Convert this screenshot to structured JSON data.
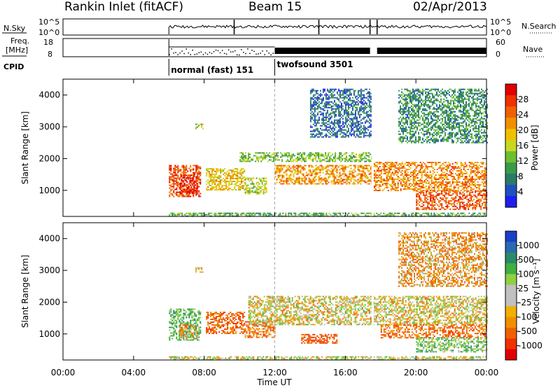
{
  "header": {
    "station": "Rankin Inlet (fitACF)",
    "beam": "Beam 15",
    "date": "02/Apr/2013"
  },
  "top_panels": {
    "nsky_label": "N.Sky",
    "nsky_ticks": [
      "10^5",
      "10^0"
    ],
    "nsearch_label": "N.Search",
    "freq_label_line1": "Freq.",
    "freq_label_line2": "[MHz]",
    "freq_ticks": [
      "18",
      "8"
    ],
    "nave_label": "Nave",
    "nave_ticks": [
      "60",
      "0"
    ],
    "cpid_label": "CPID",
    "modes": [
      {
        "label": "normal (fast) 151",
        "start_hour": 6.0,
        "end_hour": 12.0
      },
      {
        "label": "twofsound 3501",
        "start_hour": 12.0,
        "end_hour": 24.0
      }
    ]
  },
  "axes": {
    "time_label": "Time UT",
    "time_ticks": [
      "00:00",
      "04:00",
      "08:00",
      "12:00",
      "16:00",
      "20:00",
      "00:00"
    ],
    "range_label": "Slant Range [km]",
    "range_ticks": [
      "1000",
      "2000",
      "3000",
      "4000"
    ]
  },
  "colorbars": {
    "power": {
      "label": "Power [dB]",
      "ticks": [
        "4",
        "8",
        "12",
        "16",
        "20",
        "24",
        "28"
      ],
      "colors": [
        "#1e1ef0",
        "#2050c0",
        "#2a7a6a",
        "#3a9a4a",
        "#6cc030",
        "#c8d820",
        "#f0c000",
        "#f09000",
        "#f06000",
        "#f03000",
        "#e00000"
      ]
    },
    "velocity": {
      "label": "Velocity [m s⁻¹]",
      "ticks": [
        "1000",
        "500",
        "100",
        "25",
        "-25",
        "-100",
        "-500",
        "-1000"
      ],
      "colors": [
        "#1a3fc8",
        "#2a6ab0",
        "#2a8a6a",
        "#40b040",
        "#90d040",
        "#c0c0c0",
        "#c0c0c0",
        "#f0b000",
        "#f09000",
        "#f06000",
        "#f03000",
        "#e00000"
      ]
    }
  },
  "chart_data": {
    "type": "heatmap",
    "x_range_hours": [
      0,
      24
    ],
    "y_range_km": [
      180,
      4500
    ],
    "power_blocks": [
      {
        "t0": 6.0,
        "t1": 7.8,
        "r0": 800,
        "r1": 1800,
        "power": 26
      },
      {
        "t0": 6.6,
        "t1": 7.6,
        "r0": 900,
        "r1": 1500,
        "power": 29
      },
      {
        "t0": 8.1,
        "t1": 10.3,
        "r0": 1000,
        "r1": 1700,
        "power": 18
      },
      {
        "t0": 10.3,
        "t1": 11.5,
        "r0": 900,
        "r1": 1400,
        "power": 14
      },
      {
        "t0": 12.0,
        "t1": 17.5,
        "r0": 1200,
        "r1": 1800,
        "power": 21
      },
      {
        "t0": 10.0,
        "t1": 17.5,
        "r0": 1900,
        "r1": 2200,
        "power": 12
      },
      {
        "t0": 17.6,
        "t1": 24.0,
        "r0": 1000,
        "r1": 1900,
        "power": 22
      },
      {
        "t0": 20.0,
        "t1": 24.0,
        "r0": 400,
        "r1": 1000,
        "power": 25
      },
      {
        "t0": 6.0,
        "t1": 24.0,
        "r0": 180,
        "r1": 300,
        "power": 10
      },
      {
        "t0": 14.0,
        "t1": 17.5,
        "r0": 2700,
        "r1": 4200,
        "power": 5
      },
      {
        "t0": 19.0,
        "t1": 24.0,
        "r0": 2500,
        "r1": 4200,
        "power": 8
      },
      {
        "t0": 7.5,
        "t1": 7.9,
        "r0": 2950,
        "r1": 3100,
        "power": 13
      }
    ],
    "velocity_blocks": [
      {
        "t0": 6.0,
        "t1": 7.8,
        "r0": 800,
        "r1": 1800,
        "velocity": 300
      },
      {
        "t0": 6.6,
        "t1": 7.6,
        "r0": 900,
        "r1": 1300,
        "velocity": -200
      },
      {
        "t0": 8.1,
        "t1": 10.3,
        "r0": 1000,
        "r1": 1700,
        "velocity": -300
      },
      {
        "t0": 10.3,
        "t1": 12.0,
        "r0": 900,
        "r1": 1400,
        "velocity": -250
      },
      {
        "t0": 10.5,
        "t1": 24.0,
        "r0": 1300,
        "r1": 2200,
        "velocity": 0
      },
      {
        "t0": 13.5,
        "t1": 15.5,
        "r0": 700,
        "r1": 1000,
        "velocity": -400
      },
      {
        "t0": 18.0,
        "t1": 24.0,
        "r0": 900,
        "r1": 1300,
        "velocity": -300
      },
      {
        "t0": 20.0,
        "t1": 24.0,
        "r0": 450,
        "r1": 900,
        "velocity": 200
      },
      {
        "t0": 6.0,
        "t1": 24.0,
        "r0": 180,
        "r1": 300,
        "velocity": 50
      },
      {
        "t0": 19.0,
        "t1": 24.0,
        "r0": 2500,
        "r1": 4200,
        "velocity": -150
      },
      {
        "t0": 7.5,
        "t1": 7.9,
        "r0": 2950,
        "r1": 3100,
        "velocity": 60
      }
    ],
    "grid": false
  }
}
